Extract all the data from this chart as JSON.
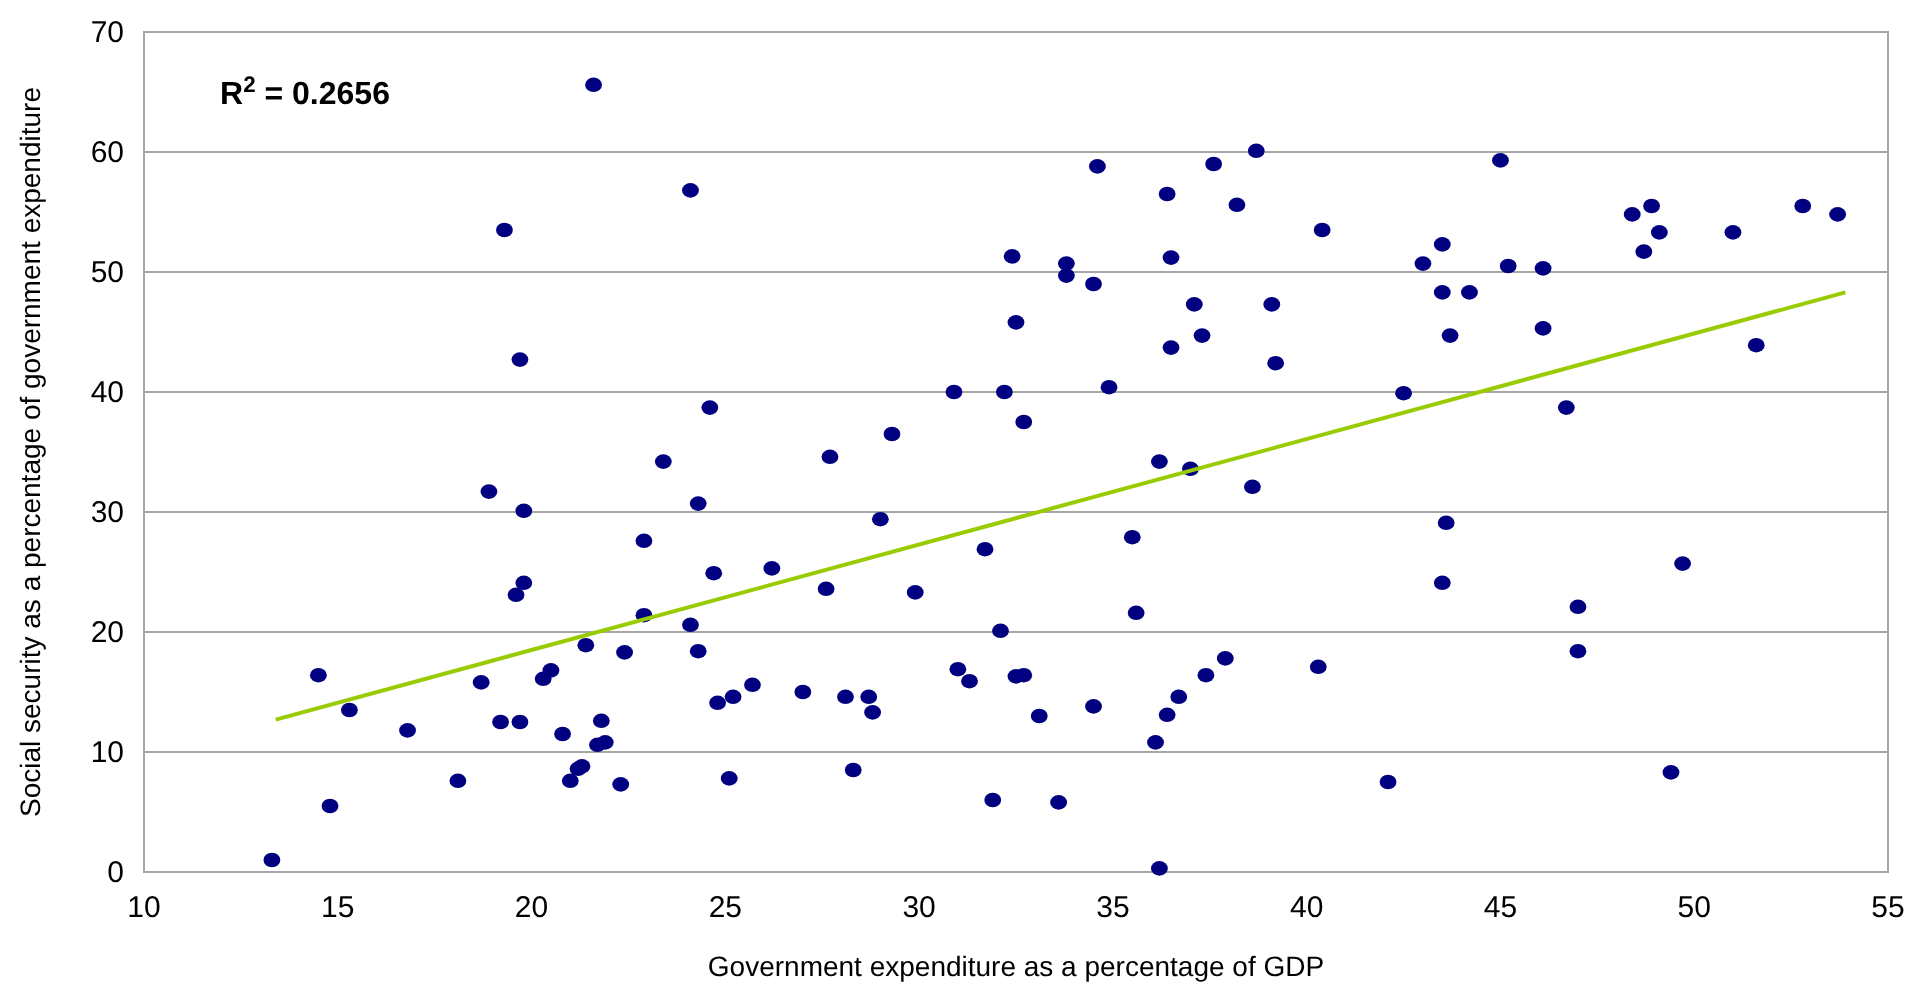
{
  "chart_data": {
    "type": "scatter",
    "xlabel": "Government expenditure as a percentage of GDP",
    "ylabel": "Social security as a percentage of government expenditure",
    "annotations": [
      "R$^{2}$ = 0.2656"
    ],
    "xlim": [
      10,
      55
    ],
    "xticks": [
      10,
      15,
      20,
      25,
      30,
      35,
      40,
      45,
      50,
      55
    ],
    "ylim": [
      0,
      70
    ],
    "yticks": [
      0,
      10,
      20,
      30,
      40,
      50,
      60,
      70
    ],
    "grid": "y",
    "marker": "circle",
    "series": [
      {
        "color": "#000080",
        "x": [
          13.3,
          14.5,
          14.8,
          15.3,
          16.8,
          18.1,
          18.7,
          18.9,
          19.2,
          19.3,
          19.6,
          19.8,
          19.7,
          19.7,
          19.8,
          20.3,
          20.5,
          20.8,
          21.0,
          21.2,
          21.3,
          21.4,
          21.6,
          21.7,
          21.8,
          21.9,
          22.3,
          22.4,
          22.9,
          22.9,
          23.4,
          24.1,
          24.1,
          24.3,
          24.3,
          24.6,
          24.7,
          24.8,
          25.1,
          25.2,
          25.7,
          26.2,
          27.0,
          27.6,
          27.7,
          28.1,
          28.3,
          28.7,
          28.8,
          29.0,
          29.3,
          29.9,
          30.9,
          31.0,
          31.3,
          31.7,
          31.9,
          32.1,
          32.2,
          32.5,
          32.4,
          32.5,
          32.7,
          32.7,
          33.1,
          33.6,
          33.8,
          33.8,
          34.5,
          34.5,
          34.6,
          34.9,
          35.5,
          35.6,
          36.1,
          36.2,
          36.2,
          36.4,
          36.4,
          36.5,
          36.5,
          36.7,
          37.0,
          37.1,
          37.4,
          37.3,
          37.6,
          37.9,
          38.2,
          38.7,
          38.6,
          39.1,
          39.2,
          40.3,
          40.4,
          42.1,
          42.5,
          43.0,
          43.5,
          43.5,
          43.5,
          43.6,
          43.7,
          44.2,
          45.0,
          45.2,
          46.1,
          46.1,
          46.7,
          47.0,
          47.0,
          48.4,
          48.7,
          48.9,
          49.1,
          49.7,
          49.4,
          51.0,
          51.6,
          52.8,
          53.7
        ],
        "values": [
          1.0,
          16.4,
          5.5,
          13.5,
          11.8,
          7.6,
          15.8,
          31.7,
          12.5,
          53.5,
          23.1,
          24.1,
          12.5,
          42.7,
          30.1,
          16.1,
          16.8,
          11.5,
          7.6,
          8.6,
          8.8,
          18.9,
          65.6,
          10.6,
          12.6,
          10.8,
          7.3,
          18.3,
          27.6,
          21.4,
          34.2,
          56.8,
          20.6,
          30.7,
          18.4,
          38.7,
          24.9,
          14.1,
          7.8,
          14.6,
          15.6,
          25.3,
          15.0,
          23.6,
          34.6,
          14.6,
          8.5,
          14.6,
          13.3,
          29.4,
          36.5,
          23.3,
          40.0,
          16.9,
          15.9,
          26.9,
          6.0,
          20.1,
          40.0,
          16.3,
          51.3,
          45.8,
          37.5,
          16.4,
          13.0,
          5.8,
          49.7,
          50.7,
          49.0,
          13.8,
          58.8,
          40.4,
          27.9,
          21.6,
          10.8,
          34.2,
          0.3,
          56.5,
          13.1,
          51.2,
          43.7,
          14.6,
          33.6,
          47.3,
          16.4,
          44.7,
          59.0,
          17.8,
          55.6,
          60.1,
          32.1,
          47.3,
          42.4,
          17.1,
          53.5,
          7.5,
          39.9,
          50.7,
          52.3,
          48.3,
          24.1,
          29.1,
          44.7,
          48.3,
          59.3,
          50.5,
          50.3,
          45.3,
          38.7,
          22.1,
          18.4,
          54.8,
          51.7,
          55.5,
          53.3,
          25.7,
          8.3,
          53.3,
          43.9,
          55.5,
          54.8
        ]
      },
      {
        "type": "line",
        "color": "#99cc00",
        "marker": "none",
        "line_style": "solid",
        "x": [
          13.4,
          53.9
        ],
        "values": [
          12.7,
          48.3
        ]
      }
    ]
  }
}
